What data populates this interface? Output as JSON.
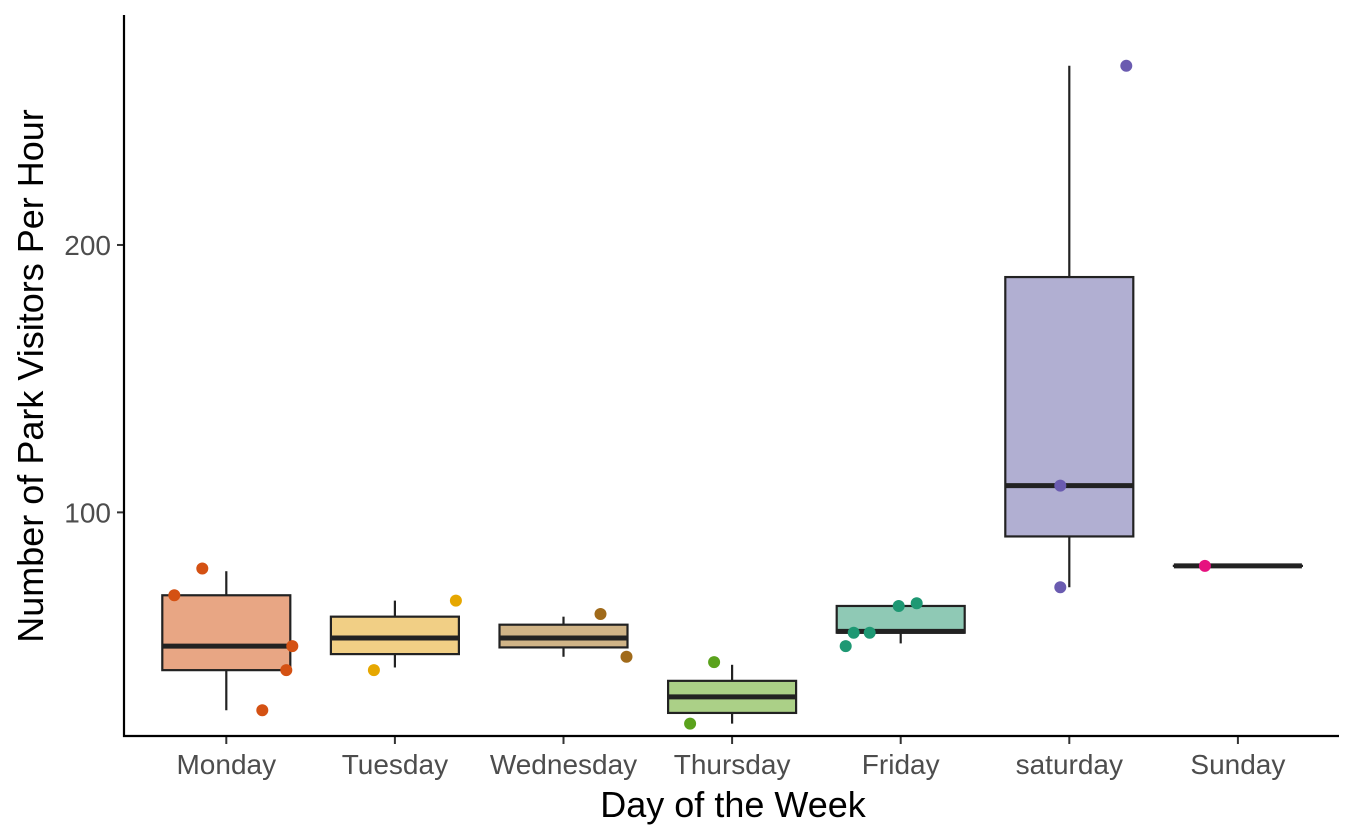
{
  "chart_data": {
    "type": "boxplot",
    "xlabel": "Day of the Week",
    "ylabel": "Number of Park Visitors Per Hour",
    "ylim": [
      16,
      286
    ],
    "yticks": [
      100,
      200
    ],
    "grid": false,
    "legend": "none",
    "categories": [
      "Monday",
      "Tuesday",
      "Wednesday",
      "Thursday",
      "Friday",
      "saturday",
      "Sunday"
    ],
    "boxes": [
      {
        "category": "Monday",
        "min": 26,
        "q1": 41,
        "median": 50,
        "q3": 69,
        "max": 78,
        "fill": "#E8A684",
        "point_color": "#D45113"
      },
      {
        "category": "Tuesday",
        "min": 42,
        "q1": 47,
        "median": 53,
        "q3": 61,
        "max": 67,
        "fill": "#F1CF85",
        "point_color": "#E6A700"
      },
      {
        "category": "Wednesday",
        "min": 46,
        "q1": 49.5,
        "median": 53,
        "q3": 58,
        "max": 61,
        "fill": "#D0B487",
        "point_color": "#A06A1A"
      },
      {
        "category": "Thursday",
        "min": 21,
        "q1": 25,
        "median": 31,
        "q3": 37,
        "max": 43,
        "fill": "#ABD087",
        "point_color": "#5AA21C"
      },
      {
        "category": "Friday",
        "min": 51,
        "q1": 55,
        "median": 55.5,
        "q3": 65,
        "max": 65,
        "fill": "#8FC9B5",
        "point_color": "#1E9873"
      },
      {
        "category": "saturday",
        "min": 72,
        "q1": 91,
        "median": 110,
        "q3": 188,
        "max": 267,
        "fill": "#B1AFD2",
        "point_color": "#6A5BB0"
      },
      {
        "category": "Sunday",
        "min": 80,
        "q1": 80,
        "median": 80,
        "q3": 80,
        "max": 80,
        "fill": "#F08AB8",
        "point_color": "#E6117F"
      }
    ],
    "points": [
      {
        "category": "Monday",
        "values": [
          79,
          69,
          50,
          41,
          26
        ]
      },
      {
        "category": "Tuesday",
        "values": [
          67,
          41
        ]
      },
      {
        "category": "Wednesday",
        "values": [
          62,
          46
        ]
      },
      {
        "category": "Thursday",
        "values": [
          44,
          21
        ]
      },
      {
        "category": "Friday",
        "values": [
          66,
          65,
          55,
          55,
          50
        ]
      },
      {
        "category": "saturday",
        "values": [
          267,
          110,
          72
        ]
      },
      {
        "category": "Sunday",
        "values": [
          80
        ]
      }
    ]
  }
}
